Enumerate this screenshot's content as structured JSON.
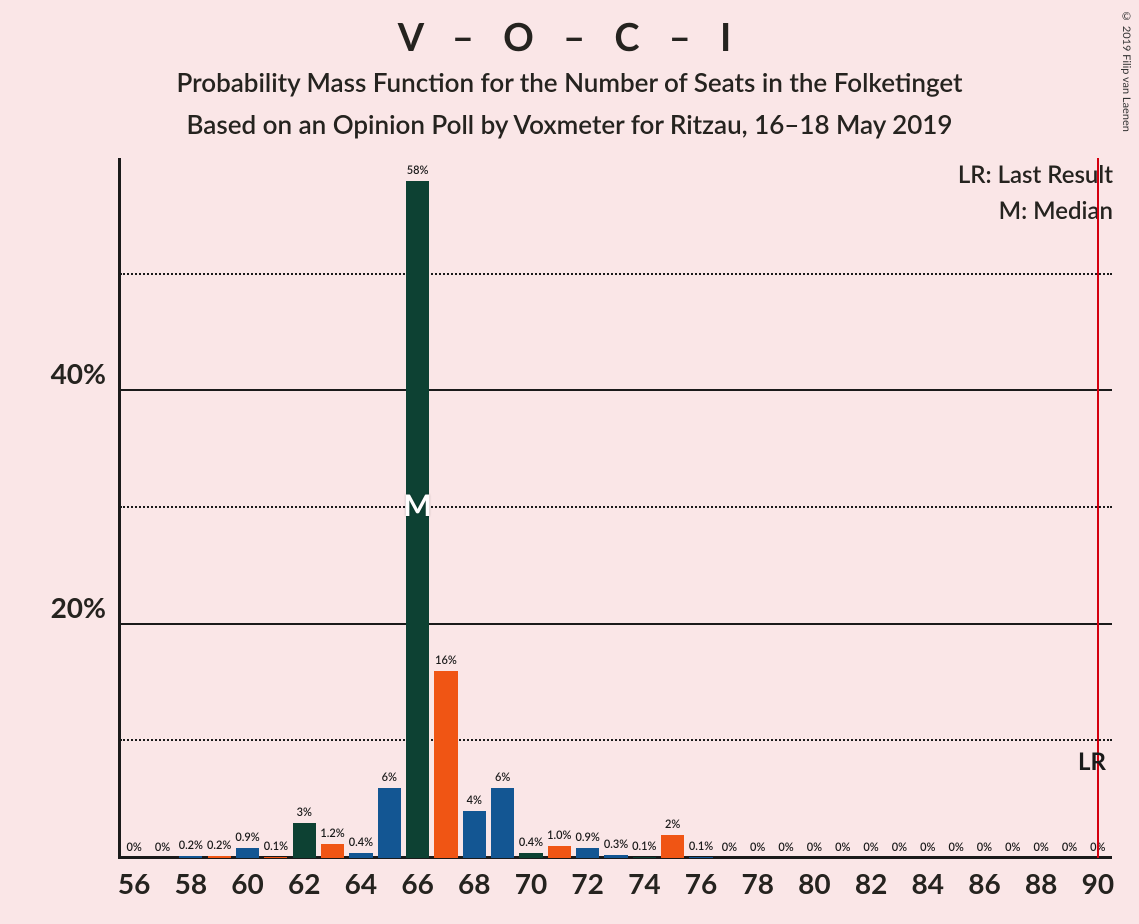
{
  "title": "V – O – C – I",
  "subtitle1": "Probability Mass Function for the Number of Seats in the Folketinget",
  "subtitle2": "Based on an Opinion Poll by Voxmeter for Ritzau, 16–18 May 2019",
  "legend": {
    "lr": "LR: Last Result",
    "m": "M: Median"
  },
  "copyright": "© 2019 Filip van Laenen",
  "chart": {
    "type": "bar",
    "background_color": "#fae6e7",
    "axis_color": "#1a1a1a",
    "grid_solid_color": "#1a1a1a",
    "grid_dotted_color": "#1a1a1a",
    "lr_color": "#d4000f",
    "median_color": "#ffffff",
    "bar_colors": {
      "blue": "#135693",
      "orange": "#f05514",
      "dark": "#0d4133"
    },
    "y": {
      "min": 0,
      "max": 60,
      "ticks": [
        20,
        40
      ],
      "minor": [
        10,
        30,
        50
      ],
      "tick_labels": [
        "20%",
        "40%"
      ]
    },
    "x": {
      "min": 56,
      "max": 90,
      "label_step": 2,
      "labels": [
        "56",
        "58",
        "60",
        "62",
        "64",
        "66",
        "68",
        "70",
        "72",
        "74",
        "76",
        "78",
        "80",
        "82",
        "84",
        "86",
        "88",
        "90"
      ]
    },
    "lr_value": 90,
    "lr_badge": "LR",
    "median_value": 66,
    "median_badge": "M",
    "bars": [
      {
        "x": 56,
        "v": 0,
        "lbl": "0%",
        "c": "blue"
      },
      {
        "x": 57,
        "v": 0,
        "lbl": "0%",
        "c": "orange"
      },
      {
        "x": 58,
        "v": 0.2,
        "lbl": "0.2%",
        "c": "blue"
      },
      {
        "x": 59,
        "v": 0.2,
        "lbl": "0.2%",
        "c": "orange"
      },
      {
        "x": 60,
        "v": 0.9,
        "lbl": "0.9%",
        "c": "blue"
      },
      {
        "x": 61,
        "v": 0.1,
        "lbl": "0.1%",
        "c": "orange"
      },
      {
        "x": 62,
        "v": 3,
        "lbl": "3%",
        "c": "dark"
      },
      {
        "x": 63,
        "v": 1.2,
        "lbl": "1.2%",
        "c": "orange"
      },
      {
        "x": 64,
        "v": 0.4,
        "lbl": "0.4%",
        "c": "blue"
      },
      {
        "x": 65,
        "v": 6,
        "lbl": "6%",
        "c": "blue"
      },
      {
        "x": 66,
        "v": 58,
        "lbl": "58%",
        "c": "dark"
      },
      {
        "x": 67,
        "v": 16,
        "lbl": "16%",
        "c": "orange"
      },
      {
        "x": 68,
        "v": 4,
        "lbl": "4%",
        "c": "blue"
      },
      {
        "x": 69,
        "v": 6,
        "lbl": "6%",
        "c": "blue"
      },
      {
        "x": 70,
        "v": 0.4,
        "lbl": "0.4%",
        "c": "dark"
      },
      {
        "x": 71,
        "v": 1.0,
        "lbl": "1.0%",
        "c": "orange"
      },
      {
        "x": 72,
        "v": 0.9,
        "lbl": "0.9%",
        "c": "blue"
      },
      {
        "x": 73,
        "v": 0.3,
        "lbl": "0.3%",
        "c": "blue"
      },
      {
        "x": 74,
        "v": 0.1,
        "lbl": "0.1%",
        "c": "dark"
      },
      {
        "x": 75,
        "v": 2,
        "lbl": "2%",
        "c": "orange"
      },
      {
        "x": 76,
        "v": 0.1,
        "lbl": "0.1%",
        "c": "blue"
      },
      {
        "x": 77,
        "v": 0,
        "lbl": "0%",
        "c": "orange"
      },
      {
        "x": 78,
        "v": 0,
        "lbl": "0%",
        "c": "blue"
      },
      {
        "x": 79,
        "v": 0,
        "lbl": "0%",
        "c": "orange"
      },
      {
        "x": 80,
        "v": 0,
        "lbl": "0%",
        "c": "blue"
      },
      {
        "x": 81,
        "v": 0,
        "lbl": "0%",
        "c": "orange"
      },
      {
        "x": 82,
        "v": 0,
        "lbl": "0%",
        "c": "blue"
      },
      {
        "x": 83,
        "v": 0,
        "lbl": "0%",
        "c": "orange"
      },
      {
        "x": 84,
        "v": 0,
        "lbl": "0%",
        "c": "blue"
      },
      {
        "x": 85,
        "v": 0,
        "lbl": "0%",
        "c": "orange"
      },
      {
        "x": 86,
        "v": 0,
        "lbl": "0%",
        "c": "blue"
      },
      {
        "x": 87,
        "v": 0,
        "lbl": "0%",
        "c": "orange"
      },
      {
        "x": 88,
        "v": 0,
        "lbl": "0%",
        "c": "blue"
      },
      {
        "x": 89,
        "v": 0,
        "lbl": "0%",
        "c": "orange"
      },
      {
        "x": 90,
        "v": 0,
        "lbl": "0%",
        "c": "blue"
      }
    ]
  }
}
